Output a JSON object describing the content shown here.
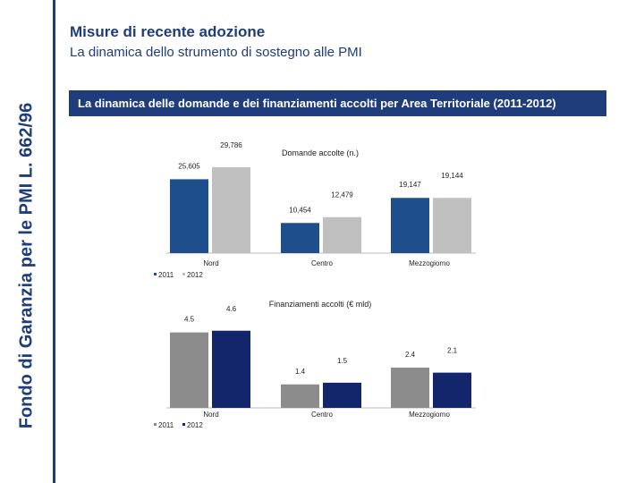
{
  "page": {
    "title": "Misure di recente adozione",
    "subtitle": "La dinamica dello strumento di sostegno alle PMI",
    "side_label": "Fondo di Garanzia per le PMI L. 662/96",
    "banner": "La dinamica delle domande e dei finanziamenti accolti per Area Territoriale (2011-2012)"
  },
  "chart_data": [
    {
      "type": "bar",
      "title": "Domande accolte (n.)",
      "categories": [
        "Nord",
        "Centro",
        "Mezzogiorno"
      ],
      "series": [
        {
          "name": "2011",
          "values": [
            25605,
            10454,
            19147
          ],
          "labels": [
            "25,605",
            "10,454",
            "19,147"
          ],
          "color": "#1f4e8c"
        },
        {
          "name": "2012",
          "values": [
            29786,
            12479,
            19144
          ],
          "labels": [
            "29,786",
            "12,479",
            "19,144"
          ],
          "color": "#c0c0c0"
        }
      ],
      "ylim": [
        0,
        31000
      ]
    },
    {
      "type": "bar",
      "title": "Finanziamenti accolti (€ mld)",
      "categories": [
        "Nord",
        "Centro",
        "Mezzogiorno"
      ],
      "series": [
        {
          "name": "2011",
          "values": [
            4.5,
            1.4,
            2.4
          ],
          "labels": [
            "4.5",
            "1.4",
            "2.4"
          ],
          "color": "#8c8c8c"
        },
        {
          "name": "2012",
          "values": [
            4.6,
            1.5,
            2.1
          ],
          "labels": [
            "4.6",
            "1.5",
            "2.1"
          ],
          "color": "#13266b"
        }
      ],
      "ylim": [
        0,
        4.8
      ]
    }
  ]
}
